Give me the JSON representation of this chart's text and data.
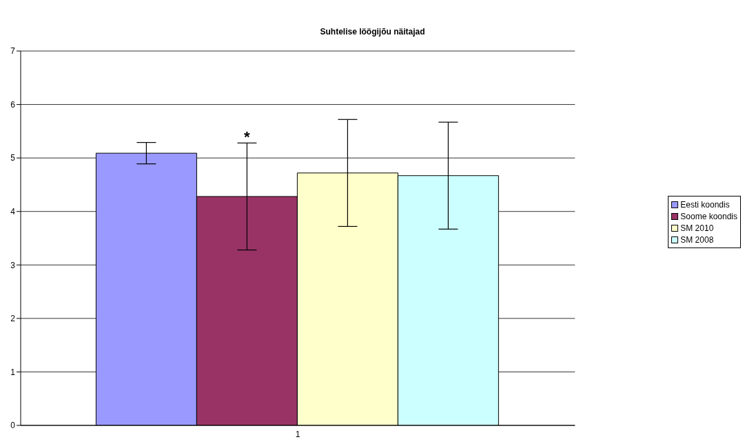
{
  "chart_data": {
    "type": "bar",
    "title": "Suhtelise löögijõu näitajad",
    "categories": [
      "1"
    ],
    "series": [
      {
        "name": "Eesti koondis",
        "color": "#9999ff",
        "values": [
          5.09
        ],
        "errors": [
          0.2
        ]
      },
      {
        "name": "Soome koondis",
        "color": "#993366",
        "values": [
          4.28
        ],
        "errors": [
          1.0
        ]
      },
      {
        "name": "SM 2010",
        "color": "#ffffcc",
        "values": [
          4.72
        ],
        "errors": [
          1.0
        ]
      },
      {
        "name": "SM 2008",
        "color": "#ccffff",
        "values": [
          4.67
        ],
        "errors": [
          1.0
        ]
      }
    ],
    "ylim": [
      0,
      7
    ],
    "yticks": [
      0,
      1,
      2,
      3,
      4,
      5,
      6,
      7
    ],
    "grid": "y",
    "legend": "right",
    "annotations": [
      "*"
    ]
  }
}
